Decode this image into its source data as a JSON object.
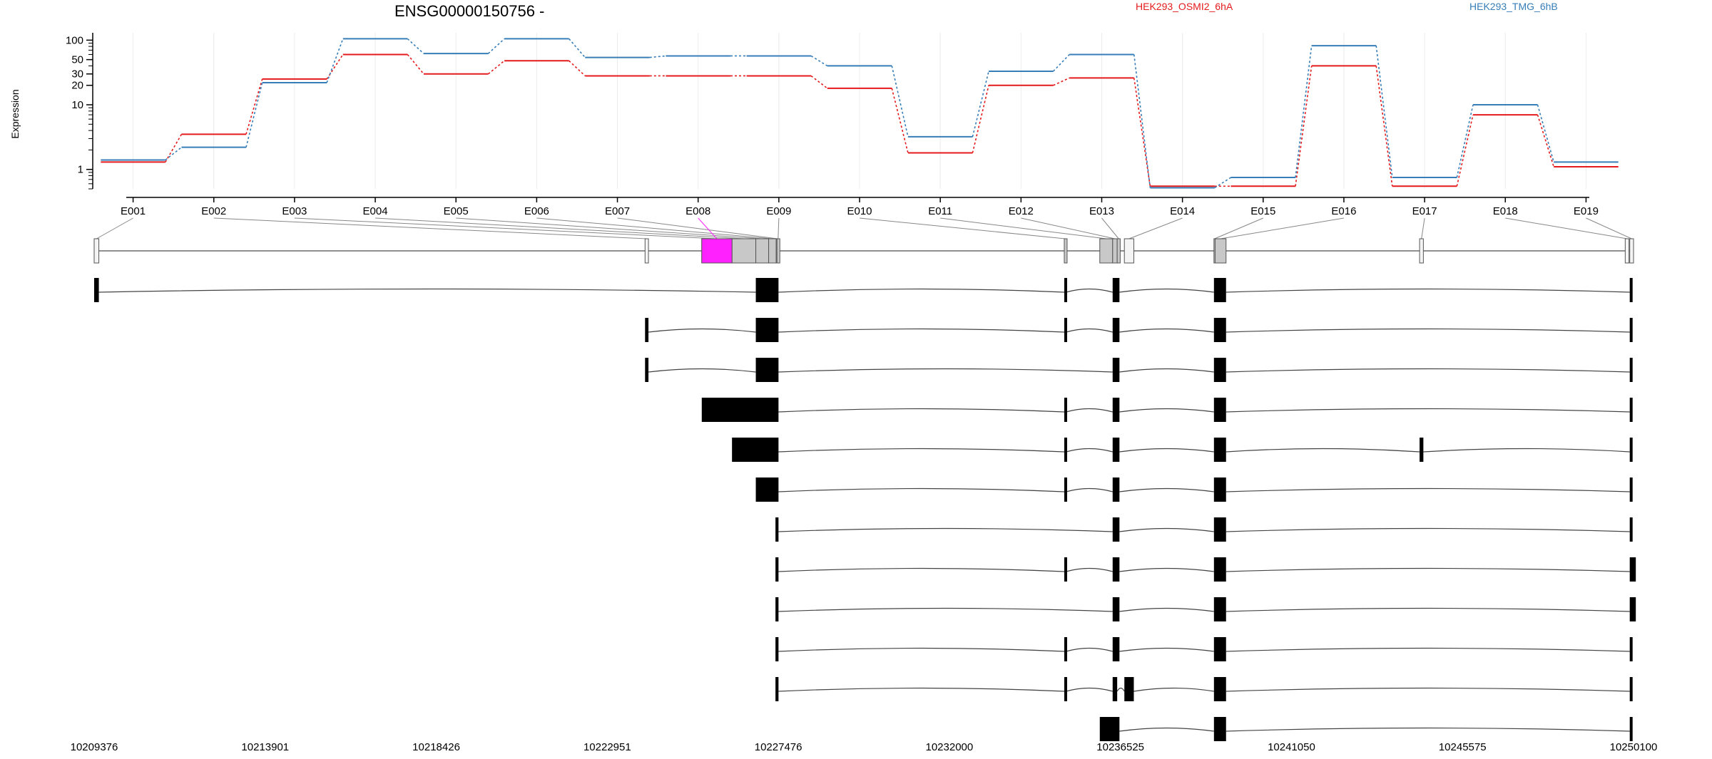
{
  "chart_data": {
    "type": "line",
    "title": "ENSG00000150756 -",
    "ylabel": "Expression",
    "y_scale": "log",
    "ylim": [
      0.5,
      130
    ],
    "y_ticks": [
      1,
      10,
      20,
      30,
      50,
      100
    ],
    "y_tick_labels": [
      "1",
      "10",
      "20",
      "30",
      "50",
      "100"
    ],
    "grid": "vertical, light",
    "legend_placement": "top",
    "categories": [
      "E001",
      "E002",
      "E003",
      "E004",
      "E005",
      "E006",
      "E007",
      "E008",
      "E009",
      "E010",
      "E011",
      "E012",
      "E013",
      "E014",
      "E015",
      "E016",
      "E017",
      "E018",
      "E019"
    ],
    "series": [
      {
        "name": "HEK293_OSMI2_6hA",
        "color": "#e41a1c",
        "values": [
          1.3,
          3.5,
          25,
          60,
          30,
          48,
          28,
          28,
          28,
          18,
          1.8,
          20,
          26,
          0.55,
          0.55,
          40,
          0.55,
          7,
          1.1
        ]
      },
      {
        "name": "HEK293_TMG_6hB",
        "color": "#377eb8",
        "values": [
          1.4,
          2.2,
          22,
          105,
          62,
          105,
          54,
          57,
          57,
          40,
          3.2,
          33,
          60,
          0.52,
          0.75,
          82,
          0.75,
          10,
          1.3
        ]
      }
    ],
    "highlighted_exon": "E008",
    "highlight_color": "#ff22ff",
    "genomic_axis_labels": [
      "10209376",
      "10213901",
      "10218426",
      "10222951",
      "10227476",
      "10232000",
      "10236525",
      "10241050",
      "10245575",
      "10250100"
    ],
    "genomic_range": [
      10209376,
      10250100
    ],
    "exons": [
      {
        "id": "E001",
        "start": 10209376,
        "end": 10209500
      },
      {
        "id": "E002",
        "start": 10223950,
        "end": 10224040
      },
      {
        "id": "E003",
        "start": 10225450,
        "end": 10226250
      },
      {
        "id": "E004",
        "start": 10226250,
        "end": 10226880
      },
      {
        "id": "E005",
        "start": 10226880,
        "end": 10227220
      },
      {
        "id": "E006",
        "start": 10227220,
        "end": 10227420
      },
      {
        "id": "E007",
        "start": 10227420,
        "end": 10227480
      },
      {
        "id": "E008",
        "start": 10225450,
        "end": 10226250
      },
      {
        "id": "E009",
        "start": 10227440,
        "end": 10227500
      },
      {
        "id": "E010",
        "start": 10235040,
        "end": 10235090
      },
      {
        "id": "E011",
        "start": 10235980,
        "end": 10236320
      },
      {
        "id": "E012",
        "start": 10236320,
        "end": 10236440
      },
      {
        "id": "E013",
        "start": 10236440,
        "end": 10236520
      },
      {
        "id": "E014",
        "start": 10236630,
        "end": 10236880
      },
      {
        "id": "E015",
        "start": 10239000,
        "end": 10239030
      },
      {
        "id": "E016",
        "start": 10239030,
        "end": 10239320
      },
      {
        "id": "E017",
        "start": 10244440,
        "end": 10244540
      },
      {
        "id": "E018",
        "start": 10249880,
        "end": 10249980
      },
      {
        "id": "E019",
        "start": 10250000,
        "end": 10250100
      }
    ],
    "transcripts": [
      [
        [
          10209376,
          10209500
        ],
        [
          10226880,
          10227480
        ],
        [
          10235040,
          10235090
        ],
        [
          10236320,
          10236500
        ],
        [
          10239000,
          10239320
        ],
        [
          10250000,
          10250040
        ]
      ],
      [
        [
          10223950,
          10224040
        ],
        [
          10226880,
          10227480
        ],
        [
          10235040,
          10235090
        ],
        [
          10236320,
          10236500
        ],
        [
          10239000,
          10239320
        ],
        [
          10250000,
          10250040
        ]
      ],
      [
        [
          10223950,
          10224040
        ],
        [
          10226880,
          10227480
        ],
        [
          10236320,
          10236500
        ],
        [
          10239000,
          10239320
        ],
        [
          10250000,
          10250040
        ]
      ],
      [
        [
          10225450,
          10227480
        ],
        [
          10235040,
          10235090
        ],
        [
          10236320,
          10236500
        ],
        [
          10239000,
          10239320
        ],
        [
          10250000,
          10250040
        ]
      ],
      [
        [
          10226250,
          10227480
        ],
        [
          10235040,
          10235090
        ],
        [
          10236320,
          10236500
        ],
        [
          10239000,
          10239320
        ],
        [
          10244440,
          10244540
        ],
        [
          10250000,
          10250040
        ]
      ],
      [
        [
          10226880,
          10227480
        ],
        [
          10235040,
          10235090
        ],
        [
          10236320,
          10236500
        ],
        [
          10239000,
          10239320
        ],
        [
          10250000,
          10250040
        ]
      ],
      [
        [
          10227400,
          10227480
        ],
        [
          10236320,
          10236500
        ],
        [
          10239000,
          10239320
        ],
        [
          10250000,
          10250040
        ]
      ],
      [
        [
          10227400,
          10227480
        ],
        [
          10235040,
          10235090
        ],
        [
          10236320,
          10236500
        ],
        [
          10239000,
          10239320
        ],
        [
          10250000,
          10250160
        ]
      ],
      [
        [
          10227400,
          10227480
        ],
        [
          10236320,
          10236500
        ],
        [
          10239000,
          10239320
        ],
        [
          10250000,
          10250160
        ]
      ],
      [
        [
          10227400,
          10227480
        ],
        [
          10235040,
          10235090
        ],
        [
          10236320,
          10236500
        ],
        [
          10239000,
          10239320
        ],
        [
          10250000,
          10250040
        ]
      ],
      [
        [
          10227400,
          10227480
        ],
        [
          10235040,
          10235090
        ],
        [
          10236320,
          10236440
        ],
        [
          10236630,
          10236880
        ],
        [
          10239000,
          10239320
        ],
        [
          10250000,
          10250040
        ]
      ],
      [
        [
          10235980,
          10236500
        ],
        [
          10239000,
          10239320
        ],
        [
          10250000,
          10250040
        ]
      ]
    ]
  }
}
